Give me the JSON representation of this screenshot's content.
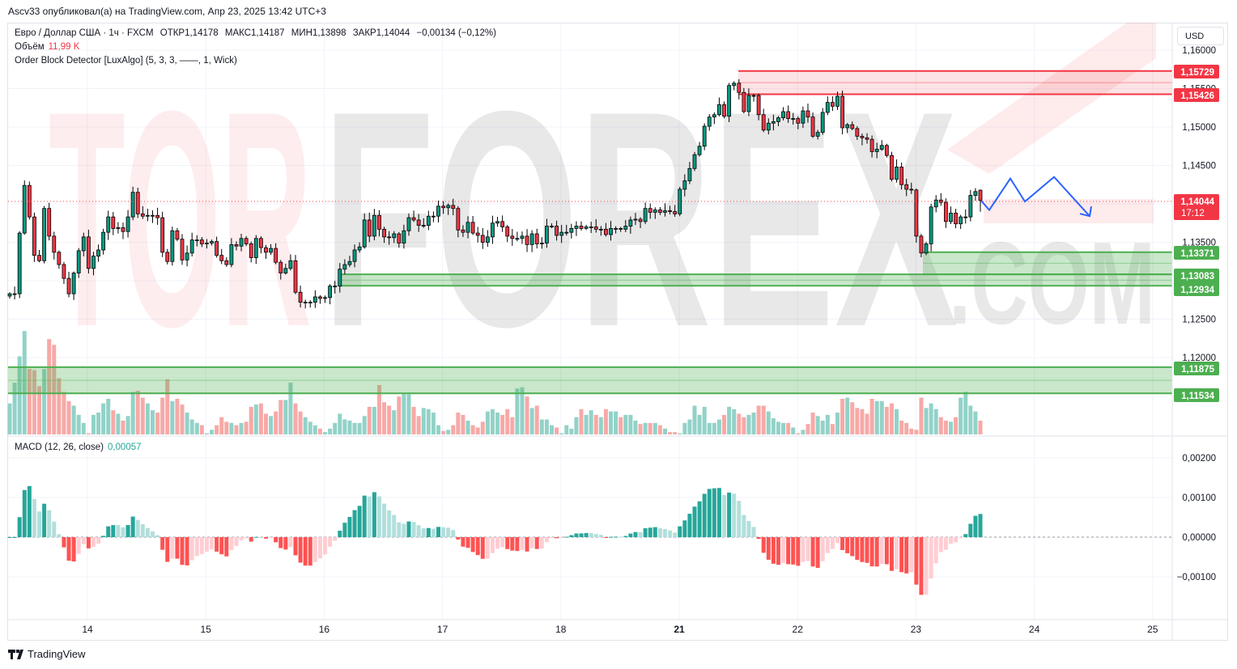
{
  "header": {
    "published": "Ascv33 опубликовал(а) на TradingView.com, Апр 23, 2025 13:42 UTC+3"
  },
  "legend": {
    "symbol": "Евро / Доллар США · 1ч · FXCM",
    "open_label": "ОТКР",
    "open": "1,14178",
    "high_label": "МАКС",
    "high": "1,14187",
    "low_label": "МИН",
    "low": "1,13898",
    "close_label": "ЗАКР",
    "close": "1,14044",
    "change": "−0,00134 (−0,12%)",
    "volume_label": "Объём",
    "volume": "11,99 K",
    "indicator": "Order Block Detector [LuxAlgo] (5, 3, 3, ——, 1, Wick)"
  },
  "currency_button": "USD",
  "macd_legend": {
    "label": "MACD (12, 26, close)",
    "value": "0,00057"
  },
  "price_labels": {
    "ob_bear_top": "1,15729",
    "ob_bear_bottom": "1,15426",
    "current": "1,14044",
    "countdown": "17:12",
    "ob_bull1_top": "1,13371",
    "ob_bull1_bottom": "1,13083",
    "ob_bull2_bottom": "1,12934",
    "ob_bull3_top": "1,11875",
    "ob_bull3_bottom": "1,11534"
  },
  "watermark": {
    "part1": "TOR",
    "part2": "FOREX",
    "part3": ".COM"
  },
  "footer": {
    "brand": "TradingView"
  },
  "colors": {
    "up": "#089981",
    "down": "#f23645",
    "vol_up": "#92d2c8",
    "vol_down": "#f7a9a7",
    "macd_up_strong": "#26a69a",
    "macd_up_weak": "#b2dfdb",
    "macd_dn_strong": "#ff5252",
    "macd_dn_weak": "#ffcdd2",
    "ob_bull": "#4caf50",
    "ob_bear": "#f23645",
    "projection": "#2962ff"
  },
  "chart_data": {
    "type": "candlestick",
    "title": "EUR/USD 1h FXCM",
    "price_ticks": [
      "1,16000",
      "1,15500",
      "1,15000",
      "1,14500",
      "1,13500",
      "1,12500",
      "1,12000"
    ],
    "price_tick_values": [
      1.16,
      1.155,
      1.15,
      1.145,
      1.135,
      1.125,
      1.12
    ],
    "macd_ticks": [
      "0,00200",
      "0,00100",
      "0,00000",
      "−0,00100"
    ],
    "macd_tick_values": [
      0.002,
      0.001,
      0,
      -0.001
    ],
    "x_ticks": [
      "14",
      "15",
      "16",
      "17",
      "18",
      "21",
      "22",
      "23",
      "24",
      "25"
    ],
    "last_bar": {
      "open": 1.14178,
      "high": 1.14187,
      "low": 1.13898,
      "close": 1.14044
    },
    "closes": [
      1.1283,
      1.1283,
      1.1362,
      1.1424,
      1.1383,
      1.1333,
      1.1326,
      1.1394,
      1.1358,
      1.1337,
      1.1321,
      1.1303,
      1.1283,
      1.131,
      1.1339,
      1.1357,
      1.1316,
      1.1332,
      1.134,
      1.1363,
      1.1383,
      1.1368,
      1.1369,
      1.1364,
      1.1383,
      1.1415,
      1.1387,
      1.1384,
      1.1385,
      1.1385,
      1.1382,
      1.1337,
      1.1325,
      1.1365,
      1.1354,
      1.1327,
      1.1336,
      1.1353,
      1.1353,
      1.1348,
      1.1349,
      1.1351,
      1.1333,
      1.1326,
      1.1321,
      1.1347,
      1.1345,
      1.1355,
      1.1348,
      1.133,
      1.1355,
      1.1343,
      1.1337,
      1.1342,
      1.1324,
      1.131,
      1.1316,
      1.1326,
      1.1285,
      1.1272,
      1.1272,
      1.1272,
      1.1279,
      1.1277,
      1.1278,
      1.1293,
      1.1293,
      1.1315,
      1.1321,
      1.1325,
      1.134,
      1.1344,
      1.1379,
      1.1358,
      1.1385,
      1.1367,
      1.1357,
      1.1356,
      1.1361,
      1.1349,
      1.1365,
      1.1382,
      1.1379,
      1.1372,
      1.1372,
      1.1384,
      1.1384,
      1.1397,
      1.1395,
      1.1398,
      1.1394,
      1.1366,
      1.1363,
      1.1376,
      1.1362,
      1.1359,
      1.135,
      1.1357,
      1.1375,
      1.1377,
      1.137,
      1.1358,
      1.1355,
      1.1355,
      1.1358,
      1.1347,
      1.1361,
      1.1348,
      1.1349,
      1.1371,
      1.1371,
      1.1359,
      1.1363,
      1.1363,
      1.1368,
      1.1371,
      1.1368,
      1.137,
      1.137,
      1.1367,
      1.1367,
      1.136,
      1.1368,
      1.1368,
      1.1367,
      1.1371,
      1.1379,
      1.138,
      1.1377,
      1.1394,
      1.1389,
      1.1392,
      1.1389,
      1.1391,
      1.139,
      1.1387,
      1.1419,
      1.143,
      1.1446,
      1.1464,
      1.1475,
      1.1501,
      1.1513,
      1.1516,
      1.1529,
      1.1514,
      1.1554,
      1.1557,
      1.1545,
      1.152,
      1.1541,
      1.1541,
      1.1516,
      1.1496,
      1.1505,
      1.1507,
      1.1512,
      1.152,
      1.1511,
      1.1511,
      1.1505,
      1.1521,
      1.1513,
      1.1488,
      1.1493,
      1.1519,
      1.1532,
      1.1527,
      1.154,
      1.1499,
      1.1503,
      1.1498,
      1.1488,
      1.1486,
      1.1484,
      1.1468,
      1.1471,
      1.1476,
      1.1463,
      1.1432,
      1.1448,
      1.1425,
      1.1419,
      1.1418,
      1.1358,
      1.1336,
      1.1348,
      1.1396,
      1.1405,
      1.1402,
      1.1377,
      1.1388,
      1.1374,
      1.1383,
      1.1383,
      1.1411,
      1.1416,
      1.14044
    ],
    "volume_k": [
      27,
      45,
      68,
      90,
      57,
      56,
      42,
      57,
      83,
      78,
      49,
      37,
      29,
      25,
      17,
      10,
      1,
      17,
      19,
      27,
      31,
      21,
      18,
      12,
      16,
      37,
      38,
      32,
      27,
      21,
      19,
      32,
      48,
      29,
      31,
      26,
      19,
      13,
      10,
      8,
      1,
      4,
      8,
      15,
      11,
      10,
      8,
      10,
      11,
      24,
      26,
      27,
      18,
      16,
      20,
      30,
      30,
      45,
      27,
      20,
      15,
      11,
      8,
      5,
      2,
      5,
      10,
      18,
      13,
      12,
      10,
      10,
      16,
      24,
      24,
      43,
      28,
      25,
      21,
      33,
      35,
      35,
      24,
      16,
      23,
      22,
      19,
      8,
      3,
      4,
      8,
      19,
      17,
      12,
      8,
      6,
      11,
      20,
      22,
      19,
      17,
      22,
      15,
      40,
      41,
      33,
      23,
      25,
      13,
      13,
      8,
      6,
      1,
      8,
      5,
      15,
      22,
      17,
      21,
      17,
      15,
      22,
      20,
      20,
      15,
      17,
      17,
      12,
      9,
      10,
      10,
      10,
      8,
      5,
      2,
      2,
      1,
      10,
      13,
      25,
      17,
      24,
      10,
      10,
      13,
      17,
      24,
      22,
      18,
      15,
      17,
      19,
      25,
      25,
      20,
      14,
      11,
      10,
      10,
      6,
      1,
      4,
      9,
      19,
      16,
      12,
      17,
      9,
      19,
      31,
      32,
      28,
      23,
      22,
      18,
      31,
      29,
      29,
      24,
      27,
      22,
      12,
      10,
      5,
      4,
      32,
      23,
      27,
      22,
      15,
      12,
      11,
      15,
      32,
      37,
      25,
      20,
      12
    ],
    "order_blocks": [
      {
        "type": "bearish",
        "top": 1.15729,
        "bottom": 1.15426
      },
      {
        "type": "bullish",
        "top": 1.13371,
        "bottom": 1.13083
      },
      {
        "type": "bullish",
        "top": 1.13083,
        "bottom": 1.12934
      },
      {
        "type": "bullish",
        "top": 1.11875,
        "bottom": 1.11534
      }
    ],
    "projection_prices": [
      1.1404,
      1.1392,
      1.1433,
      1.1403,
      1.1435,
      1.1384
    ],
    "macd_value": 0.00057
  }
}
